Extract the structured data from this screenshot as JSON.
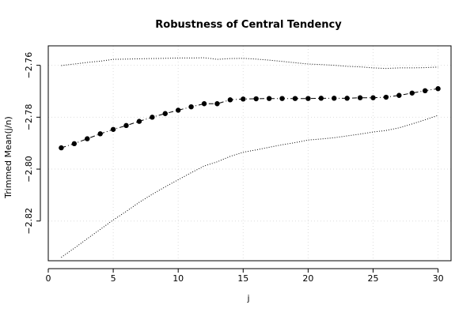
{
  "chart_data": {
    "type": "line",
    "title": "Robustness of Central Tendency",
    "xlabel": "j",
    "ylabel": "Trimmed Mean(j/n)",
    "xlim": [
      0,
      31
    ],
    "ylim": [
      -2.8353,
      -2.7525
    ],
    "x_ticks": [
      0,
      5,
      10,
      15,
      20,
      25,
      30
    ],
    "y_ticks": [
      -2.82,
      -2.8,
      -2.78,
      -2.76
    ],
    "y_tick_labels": [
      "−2.82",
      "−2.80",
      "−2.78",
      "−2.76"
    ],
    "grid": true,
    "x": [
      1,
      2,
      3,
      4,
      5,
      6,
      7,
      8,
      9,
      10,
      11,
      12,
      13,
      14,
      15,
      16,
      17,
      18,
      19,
      20,
      21,
      22,
      23,
      24,
      25,
      26,
      27,
      28,
      29,
      30
    ],
    "series": [
      {
        "role": "trimmed-mean",
        "style": "points-dashed",
        "values": [
          -2.7918,
          -2.7902,
          -2.7883,
          -2.7864,
          -2.7847,
          -2.7832,
          -2.7816,
          -2.78,
          -2.7786,
          -2.7773,
          -2.776,
          -2.7748,
          -2.7748,
          -2.7733,
          -2.773,
          -2.7729,
          -2.7728,
          -2.7728,
          -2.7728,
          -2.7728,
          -2.7727,
          -2.7727,
          -2.7727,
          -2.7725,
          -2.7725,
          -2.7723,
          -2.7716,
          -2.7707,
          -2.7698,
          -2.769
        ]
      },
      {
        "role": "upper-bound",
        "style": "dotted",
        "values": [
          -2.7601,
          -2.7595,
          -2.7589,
          -2.7584,
          -2.7577,
          -2.7576,
          -2.7575,
          -2.7574,
          -2.7573,
          -2.7572,
          -2.7572,
          -2.7571,
          -2.7577,
          -2.7574,
          -2.7573,
          -2.7576,
          -2.758,
          -2.7585,
          -2.759,
          -2.7595,
          -2.7597,
          -2.76,
          -2.7604,
          -2.7606,
          -2.761,
          -2.7612,
          -2.761,
          -2.761,
          -2.7609,
          -2.7607
        ]
      },
      {
        "role": "lower-bound",
        "style": "dotted",
        "values": [
          -2.834,
          -2.8305,
          -2.8268,
          -2.8232,
          -2.8196,
          -2.8163,
          -2.8128,
          -2.8097,
          -2.8068,
          -2.8041,
          -2.8014,
          -2.7988,
          -2.7972,
          -2.7951,
          -2.7935,
          -2.7926,
          -2.7916,
          -2.7906,
          -2.7898,
          -2.7888,
          -2.7884,
          -2.7879,
          -2.7872,
          -2.7865,
          -2.7857,
          -2.7851,
          -2.7841,
          -2.7826,
          -2.781,
          -2.7793
        ]
      }
    ]
  }
}
